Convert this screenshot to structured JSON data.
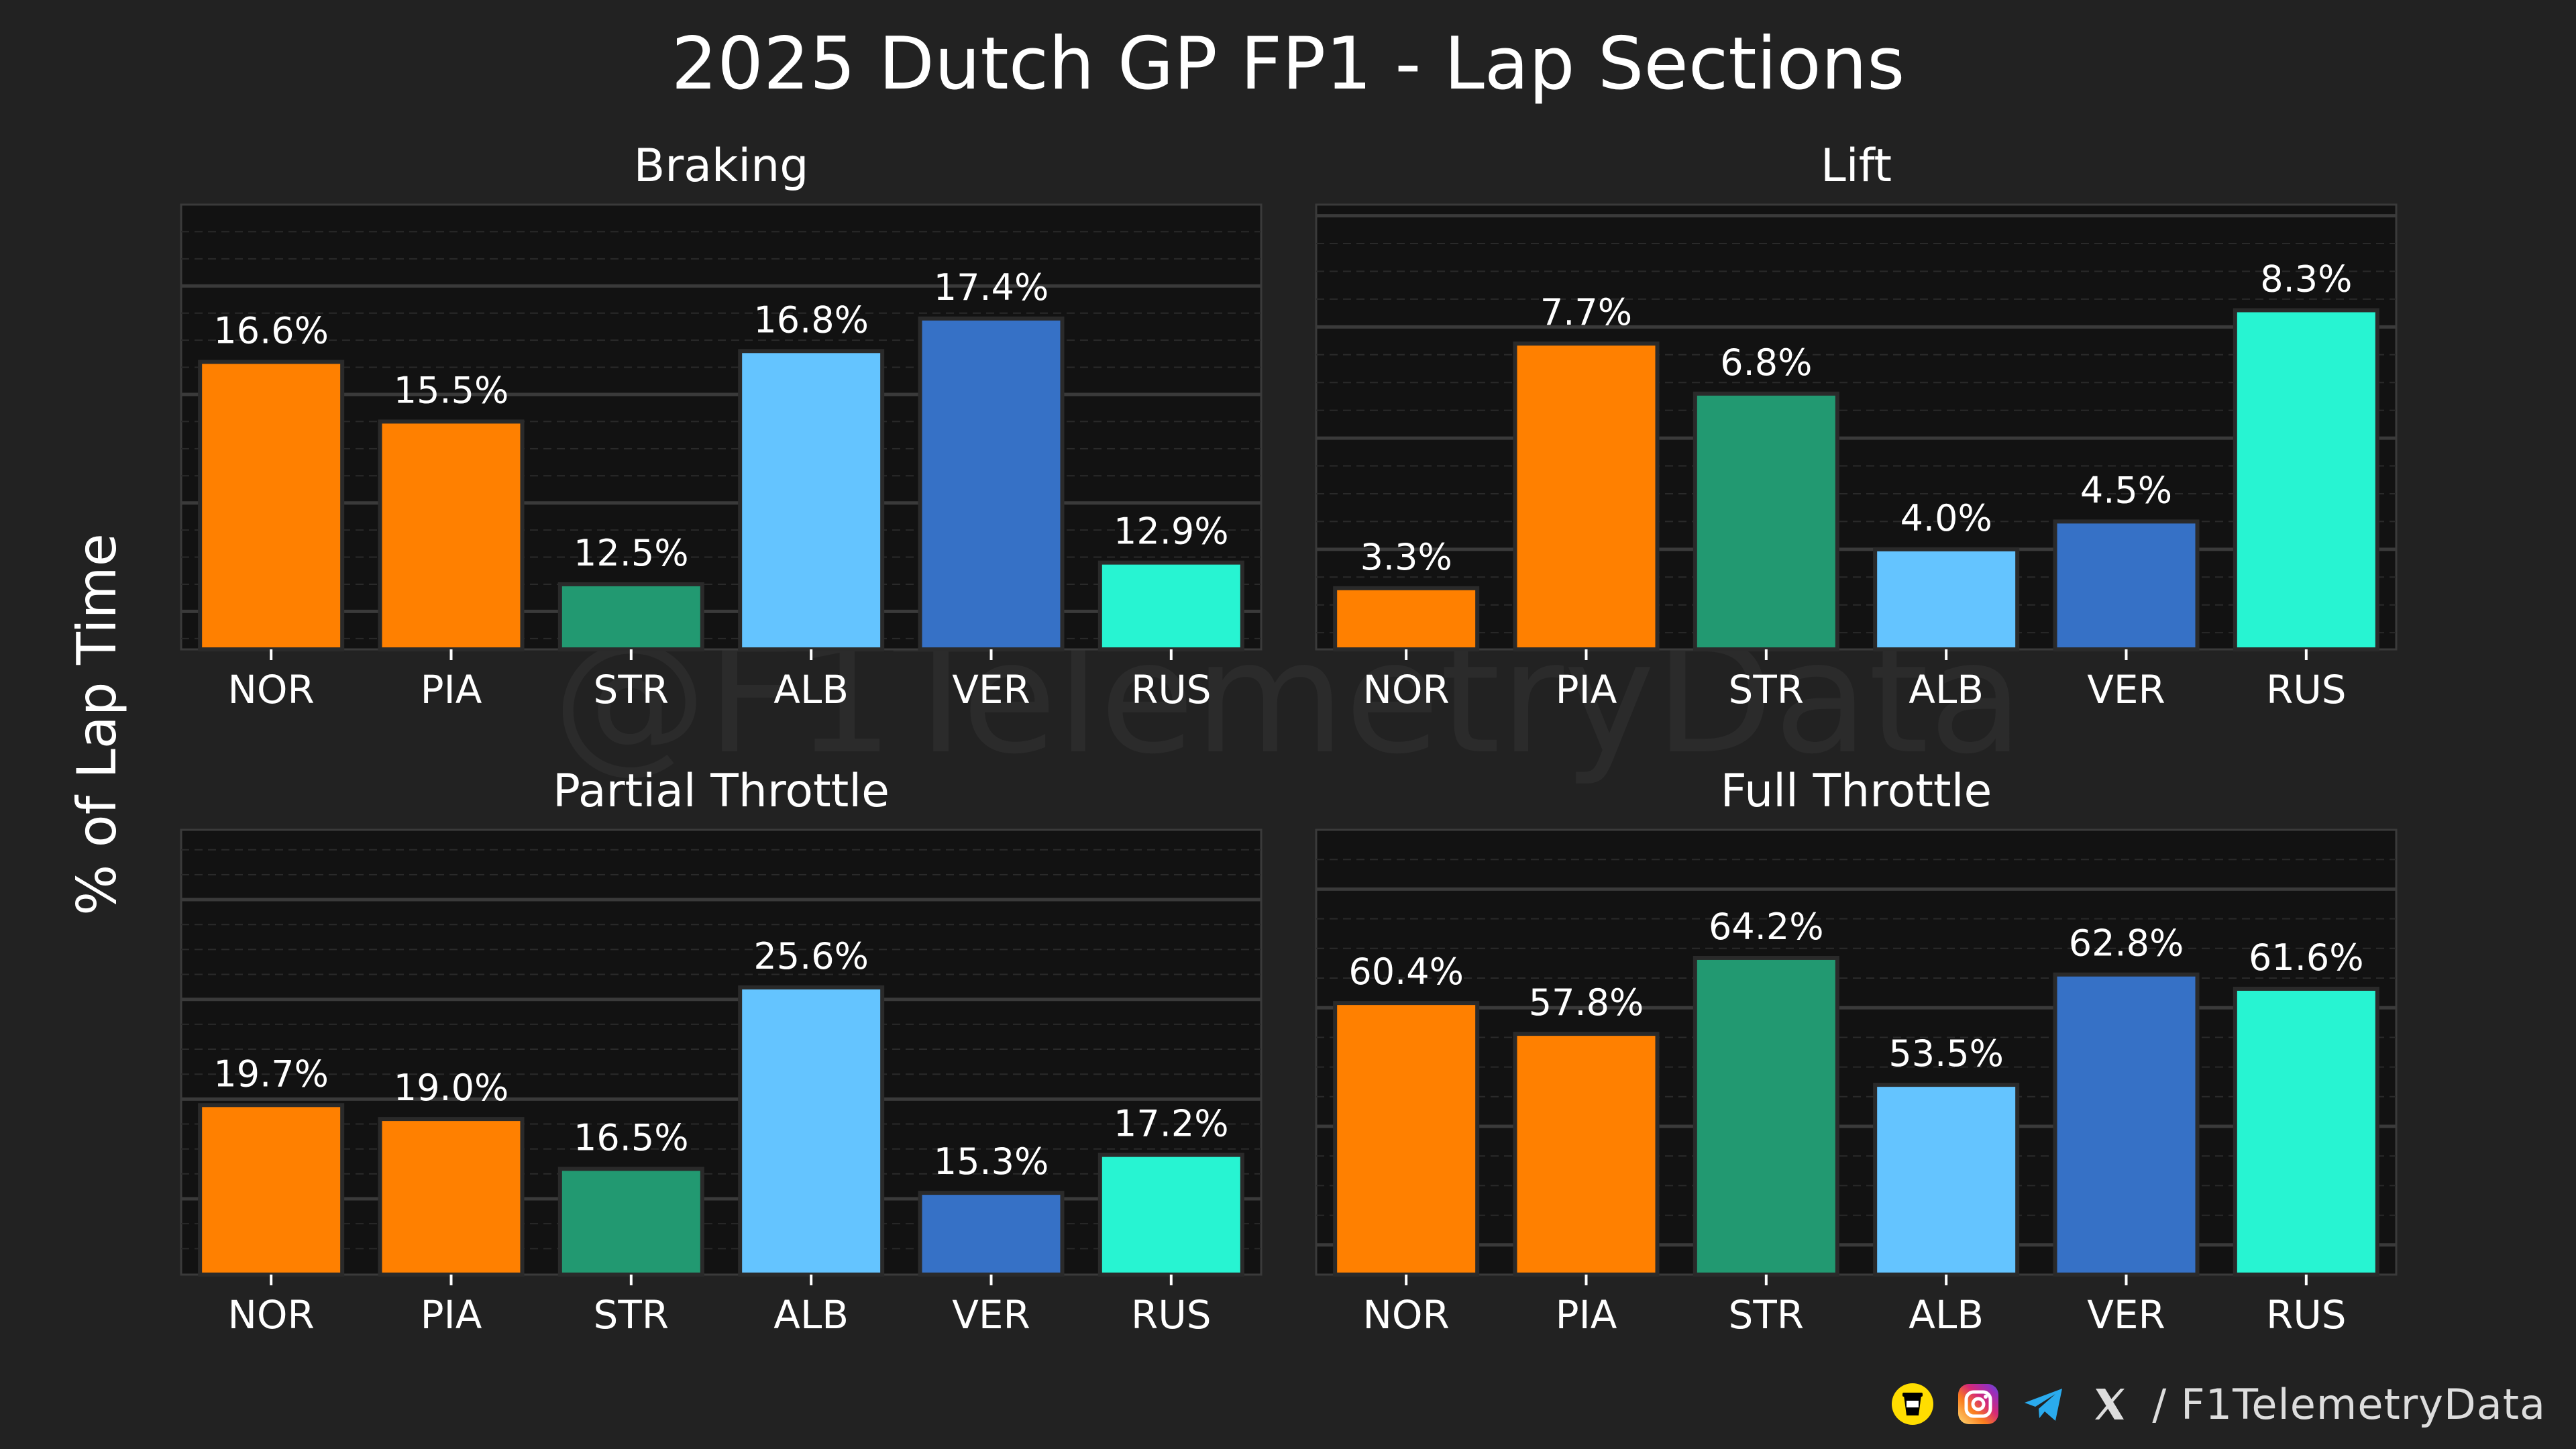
{
  "title": "2025 Dutch GP FP1 - Lap Sections",
  "ylabel": "% of Lap Time",
  "watermark": "@F1TelemetryData",
  "footer": {
    "icons": [
      "buymeacoffee-icon",
      "instagram-icon",
      "telegram-icon",
      "x-icon"
    ],
    "handle": "/ F1TelemetryData"
  },
  "colors": {
    "background": "#222222",
    "plot_background": "#121212",
    "NOR": "#FF8000",
    "PIA": "#FF8000",
    "STR": "#229971",
    "ALB": "#64C4FF",
    "VER": "#3671C6",
    "RUS": "#27F4D2"
  },
  "chart_data": [
    {
      "type": "bar",
      "title": "Braking",
      "categories": [
        "NOR",
        "PIA",
        "STR",
        "ALB",
        "VER",
        "RUS"
      ],
      "values": [
        16.6,
        15.5,
        12.5,
        16.8,
        17.4,
        12.9
      ],
      "labels": [
        "16.6%",
        "15.5%",
        "12.5%",
        "16.8%",
        "17.4%",
        "12.9%"
      ],
      "ylim": [
        11.3,
        19.5
      ],
      "grid": true
    },
    {
      "type": "bar",
      "title": "Lift",
      "categories": [
        "NOR",
        "PIA",
        "STR",
        "ALB",
        "VER",
        "RUS"
      ],
      "values": [
        3.3,
        7.7,
        6.8,
        4.0,
        4.5,
        8.3
      ],
      "labels": [
        "3.3%",
        "7.7%",
        "6.8%",
        "4.0%",
        "4.5%",
        "8.3%"
      ],
      "ylim": [
        2.2,
        10.2
      ],
      "grid": true
    },
    {
      "type": "bar",
      "title": "Partial Throttle",
      "categories": [
        "NOR",
        "PIA",
        "STR",
        "ALB",
        "VER",
        "RUS"
      ],
      "values": [
        19.7,
        19.0,
        16.5,
        25.6,
        15.3,
        17.2
      ],
      "labels": [
        "19.7%",
        "19.0%",
        "16.5%",
        "25.6%",
        "15.3%",
        "17.2%"
      ],
      "ylim": [
        11.2,
        33.5
      ],
      "grid": true
    },
    {
      "type": "bar",
      "title": "Full Throttle",
      "categories": [
        "NOR",
        "PIA",
        "STR",
        "ALB",
        "VER",
        "RUS"
      ],
      "values": [
        60.4,
        57.8,
        64.2,
        53.5,
        62.8,
        61.6
      ],
      "labels": [
        "60.4%",
        "57.8%",
        "64.2%",
        "53.5%",
        "62.8%",
        "61.6%"
      ],
      "ylim": [
        37.5,
        75.0
      ],
      "grid": true
    }
  ]
}
